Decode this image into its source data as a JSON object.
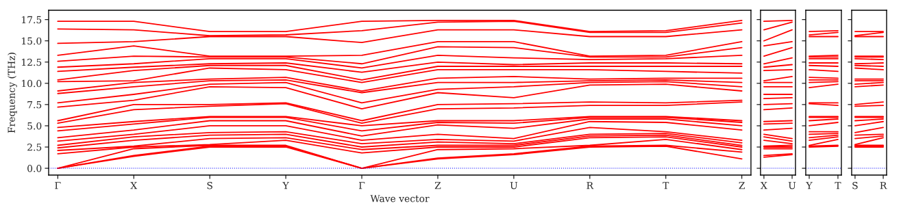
{
  "chart_data": [
    {
      "type": "line",
      "xlabel": "Wave vector",
      "ylabel": "Frequency (THz)",
      "categories": [
        "Γ",
        "X",
        "S",
        "Y",
        "Γ",
        "Z",
        "U",
        "R",
        "T",
        "Z"
      ],
      "ylim": [
        -0.8,
        18.6
      ],
      "yticks": [
        {
          "value": 0,
          "label": "0.0"
        },
        2.5,
        {
          "value": 5,
          "label": "5.0"
        },
        7.5,
        {
          "value": 10,
          "label": "10.0"
        },
        12.5,
        {
          "value": 15,
          "label": "15.0"
        },
        17.5
      ],
      "grid": false,
      "line_style": "solid",
      "marker": "none",
      "ref_lines": [
        {
          "axis": "y",
          "value": 0,
          "color": "#0000ff",
          "line_style": "dotted"
        }
      ],
      "series": [
        {
          "color": "#ff0000",
          "values": [
            0,
            1.4,
            2.5,
            2.5,
            0,
            1.1,
            1.6,
            2.5,
            2.6,
            1.1
          ]
        },
        {
          "color": "#ff0000",
          "values": [
            0,
            1.5,
            2.6,
            2.6,
            0,
            1.2,
            1.7,
            2.6,
            2.7,
            1.9
          ]
        },
        {
          "color": "#ff0000",
          "values": [
            0,
            2.3,
            2.7,
            2.7,
            0,
            2.2,
            2.3,
            2.7,
            3.4,
            2.2
          ]
        },
        {
          "color": "#ff0000",
          "values": [
            1.7,
            2.5,
            2.8,
            3.3,
            1.8,
            2.5,
            2.5,
            3.6,
            3.7,
            2.5
          ]
        },
        {
          "color": "#ff0000",
          "values": [
            2.1,
            2.6,
            3.5,
            3.6,
            2.2,
            2.7,
            2.7,
            3.8,
            3.9,
            2.7
          ]
        },
        {
          "color": "#ff0000",
          "values": [
            2.4,
            3.3,
            3.9,
            4.0,
            2.5,
            3.1,
            2.9,
            4.0,
            4.1,
            3.0
          ]
        },
        {
          "color": "#ff0000",
          "values": [
            2.7,
            3.7,
            4.2,
            4.3,
            2.9,
            3.4,
            3.2,
            4.8,
            4.3,
            3.3
          ]
        },
        {
          "color": "#ff0000",
          "values": [
            3.2,
            4.0,
            5.0,
            5.0,
            3.3,
            4.0,
            3.5,
            5.5,
            5.4,
            4.5
          ]
        },
        {
          "color": "#ff0000",
          "values": [
            3.6,
            4.5,
            5.6,
            5.6,
            3.8,
            5.1,
            4.7,
            5.8,
            5.8,
            5.0
          ]
        },
        {
          "color": "#ff0000",
          "values": [
            4.4,
            5.2,
            6.0,
            6.0,
            4.4,
            5.4,
            5.3,
            6.0,
            6.0,
            5.4
          ]
        },
        {
          "color": "#ff0000",
          "values": [
            4.8,
            5.5,
            6.1,
            6.1,
            5.0,
            5.6,
            5.6,
            6.1,
            6.1,
            5.6
          ]
        },
        {
          "color": "#ff0000",
          "values": [
            5.3,
            6.9,
            7.3,
            7.6,
            5.3,
            7.0,
            7.1,
            7.4,
            7.4,
            7.8
          ]
        },
        {
          "color": "#ff0000",
          "values": [
            5.6,
            7.5,
            7.5,
            7.7,
            5.6,
            7.5,
            7.6,
            7.8,
            7.7,
            8.0
          ]
        },
        {
          "color": "#ff0000",
          "values": [
            7.2,
            8.0,
            9.6,
            9.5,
            7.0,
            8.9,
            8.3,
            9.8,
            9.9,
            9.1
          ]
        },
        {
          "color": "#ff0000",
          "values": [
            7.7,
            8.7,
            9.9,
            10.1,
            7.7,
            9.3,
            9.6,
            10.1,
            10.2,
            9.6
          ]
        },
        {
          "color": "#ff0000",
          "values": [
            8.8,
            9.6,
            10.3,
            10.4,
            8.9,
            10.1,
            10.1,
            10.3,
            10.4,
            10.1
          ]
        },
        {
          "color": "#ff0000",
          "values": [
            9.1,
            10.1,
            10.5,
            10.7,
            9.1,
            10.6,
            10.8,
            10.5,
            10.6,
            10.6
          ]
        },
        {
          "color": "#ff0000",
          "values": [
            10.2,
            10.3,
            11.8,
            11.6,
            10.1,
            11.6,
            11.6,
            11.6,
            11.4,
            11.2
          ]
        },
        {
          "color": "#ff0000",
          "values": [
            10.4,
            11.5,
            12.1,
            12.1,
            10.4,
            12.0,
            12.0,
            12.0,
            12.0,
            12.0
          ]
        },
        {
          "color": "#ff0000",
          "values": [
            11.4,
            11.9,
            12.3,
            12.4,
            11.3,
            12.5,
            12.2,
            12.4,
            12.4,
            12.3
          ]
        },
        {
          "color": "#ff0000",
          "values": [
            11.9,
            12.3,
            12.9,
            12.9,
            11.8,
            13.3,
            13.0,
            12.8,
            12.9,
            13.3
          ]
        },
        {
          "color": "#ff0000",
          "values": [
            12.6,
            13.2,
            13.1,
            13.1,
            12.3,
            14.3,
            14.2,
            13.1,
            13.1,
            14.2
          ]
        },
        {
          "color": "#ff0000",
          "values": [
            13.3,
            14.4,
            13.2,
            13.2,
            13.3,
            14.9,
            14.9,
            13.2,
            13.3,
            14.9
          ]
        },
        {
          "color": "#ff0000",
          "values": [
            14.7,
            14.9,
            15.5,
            15.5,
            14.8,
            16.3,
            16.3,
            15.5,
            15.5,
            16.3
          ]
        },
        {
          "color": "#ff0000",
          "values": [
            16.4,
            16.3,
            15.6,
            15.7,
            16.2,
            17.2,
            17.3,
            16.0,
            16.0,
            17.1
          ]
        },
        {
          "color": "#ff0000",
          "values": [
            17.3,
            17.3,
            16.1,
            16.1,
            17.3,
            17.4,
            17.4,
            16.1,
            16.2,
            17.4
          ]
        }
      ]
    },
    {
      "type": "line",
      "categories": [
        "X",
        "U"
      ],
      "ylim": [
        -0.8,
        18.6
      ],
      "yticks": [
        {
          "value": 0,
          "label": null
        },
        {
          "value": 2.5,
          "label": null
        },
        {
          "value": 5,
          "label": null
        },
        {
          "value": 7.5,
          "label": null
        },
        {
          "value": 10,
          "label": null
        },
        {
          "value": 12.5,
          "label": null
        },
        {
          "value": 15,
          "label": null
        },
        {
          "value": 17.5,
          "label": null
        }
      ],
      "tick_labels": "x",
      "grid": false,
      "line_style": "solid",
      "marker": "none",
      "ref_lines": [
        {
          "axis": "y",
          "value": 0,
          "color": "#0000ff",
          "line_style": "dotted"
        }
      ],
      "series": [
        {
          "color": "#ff0000",
          "values": [
            1.3,
            1.6
          ]
        },
        {
          "color": "#ff0000",
          "values": [
            1.5,
            1.7
          ]
        },
        {
          "color": "#ff0000",
          "values": [
            2.3,
            2.3
          ]
        },
        {
          "color": "#ff0000",
          "values": [
            2.5,
            2.5
          ]
        },
        {
          "color": "#ff0000",
          "values": [
            2.6,
            2.7
          ]
        },
        {
          "color": "#ff0000",
          "values": [
            3.3,
            2.9
          ]
        },
        {
          "color": "#ff0000",
          "values": [
            3.7,
            3.2
          ]
        },
        {
          "color": "#ff0000",
          "values": [
            4.0,
            3.5
          ]
        },
        {
          "color": "#ff0000",
          "values": [
            4.5,
            4.7
          ]
        },
        {
          "color": "#ff0000",
          "values": [
            5.2,
            5.3
          ]
        },
        {
          "color": "#ff0000",
          "values": [
            5.5,
            5.6
          ]
        },
        {
          "color": "#ff0000",
          "values": [
            6.9,
            7.1
          ]
        },
        {
          "color": "#ff0000",
          "values": [
            7.5,
            7.6
          ]
        },
        {
          "color": "#ff0000",
          "values": [
            8.2,
            8.3
          ]
        },
        {
          "color": "#ff0000",
          "values": [
            8.7,
            8.7
          ]
        },
        {
          "color": "#ff0000",
          "values": [
            9.6,
            9.6
          ]
        },
        {
          "color": "#ff0000",
          "values": [
            10.1,
            10.1
          ]
        },
        {
          "color": "#ff0000",
          "values": [
            10.3,
            10.8
          ]
        },
        {
          "color": "#ff0000",
          "values": [
            11.5,
            11.6
          ]
        },
        {
          "color": "#ff0000",
          "values": [
            11.9,
            12.2
          ]
        },
        {
          "color": "#ff0000",
          "values": [
            12.3,
            13.0
          ]
        },
        {
          "color": "#ff0000",
          "values": [
            13.2,
            14.2
          ]
        },
        {
          "color": "#ff0000",
          "values": [
            14.4,
            14.9
          ]
        },
        {
          "color": "#ff0000",
          "values": [
            15.0,
            16.3
          ]
        },
        {
          "color": "#ff0000",
          "values": [
            16.3,
            17.2
          ]
        },
        {
          "color": "#ff0000",
          "values": [
            17.3,
            17.4
          ]
        }
      ]
    },
    {
      "type": "line",
      "categories": [
        "Y",
        "T"
      ],
      "ylim": [
        -0.8,
        18.6
      ],
      "yticks": [
        {
          "value": 0,
          "label": null
        },
        {
          "value": 2.5,
          "label": null
        },
        {
          "value": 5,
          "label": null
        },
        {
          "value": 7.5,
          "label": null
        },
        {
          "value": 10,
          "label": null
        },
        {
          "value": 12.5,
          "label": null
        },
        {
          "value": 15,
          "label": null
        },
        {
          "value": 17.5,
          "label": null
        }
      ],
      "tick_labels": "x",
      "grid": false,
      "line_style": "solid",
      "marker": "none",
      "ref_lines": [
        {
          "axis": "y",
          "value": 0,
          "color": "#0000ff",
          "line_style": "dotted"
        }
      ],
      "series": [
        {
          "color": "#ff0000",
          "values": [
            2.5,
            2.6
          ]
        },
        {
          "color": "#ff0000",
          "values": [
            2.6,
            2.7
          ]
        },
        {
          "color": "#ff0000",
          "values": [
            2.7,
            3.4
          ]
        },
        {
          "color": "#ff0000",
          "values": [
            3.3,
            3.7
          ]
        },
        {
          "color": "#ff0000",
          "values": [
            3.6,
            3.9
          ]
        },
        {
          "color": "#ff0000",
          "values": [
            4.0,
            4.1
          ]
        },
        {
          "color": "#ff0000",
          "values": [
            4.3,
            4.3
          ]
        },
        {
          "color": "#ff0000",
          "values": [
            5.0,
            5.4
          ]
        },
        {
          "color": "#ff0000",
          "values": [
            5.6,
            5.8
          ]
        },
        {
          "color": "#ff0000",
          "values": [
            6.0,
            6.0
          ]
        },
        {
          "color": "#ff0000",
          "values": [
            6.1,
            6.1
          ]
        },
        {
          "color": "#ff0000",
          "values": [
            7.6,
            7.4
          ]
        },
        {
          "color": "#ff0000",
          "values": [
            7.7,
            7.7
          ]
        },
        {
          "color": "#ff0000",
          "values": [
            9.5,
            9.9
          ]
        },
        {
          "color": "#ff0000",
          "values": [
            10.1,
            10.2
          ]
        },
        {
          "color": "#ff0000",
          "values": [
            10.4,
            10.4
          ]
        },
        {
          "color": "#ff0000",
          "values": [
            10.7,
            10.6
          ]
        },
        {
          "color": "#ff0000",
          "values": [
            11.6,
            11.4
          ]
        },
        {
          "color": "#ff0000",
          "values": [
            12.1,
            12.0
          ]
        },
        {
          "color": "#ff0000",
          "values": [
            12.4,
            12.4
          ]
        },
        {
          "color": "#ff0000",
          "values": [
            12.9,
            12.9
          ]
        },
        {
          "color": "#ff0000",
          "values": [
            13.1,
            13.1
          ]
        },
        {
          "color": "#ff0000",
          "values": [
            13.2,
            13.3
          ]
        },
        {
          "color": "#ff0000",
          "values": [
            15.5,
            15.5
          ]
        },
        {
          "color": "#ff0000",
          "values": [
            15.7,
            16.0
          ]
        },
        {
          "color": "#ff0000",
          "values": [
            16.1,
            16.2
          ]
        }
      ]
    },
    {
      "type": "line",
      "categories": [
        "S",
        "R"
      ],
      "ylim": [
        -0.8,
        18.6
      ],
      "yticks": [
        {
          "value": 0,
          "label": null
        },
        {
          "value": 2.5,
          "label": null
        },
        {
          "value": 5,
          "label": null
        },
        {
          "value": 7.5,
          "label": null
        },
        {
          "value": 10,
          "label": null
        },
        {
          "value": 12.5,
          "label": null
        },
        {
          "value": 15,
          "label": null
        },
        {
          "value": 17.5,
          "label": null
        }
      ],
      "tick_labels": "x",
      "grid": false,
      "line_style": "solid",
      "marker": "none",
      "ref_lines": [
        {
          "axis": "y",
          "value": 0,
          "color": "#0000ff",
          "line_style": "dotted"
        }
      ],
      "series": [
        {
          "color": "#ff0000",
          "values": [
            2.5,
            2.5
          ]
        },
        {
          "color": "#ff0000",
          "values": [
            2.6,
            2.6
          ]
        },
        {
          "color": "#ff0000",
          "values": [
            2.7,
            2.7
          ]
        },
        {
          "color": "#ff0000",
          "values": [
            2.8,
            3.6
          ]
        },
        {
          "color": "#ff0000",
          "values": [
            3.5,
            3.8
          ]
        },
        {
          "color": "#ff0000",
          "values": [
            3.9,
            4.0
          ]
        },
        {
          "color": "#ff0000",
          "values": [
            4.2,
            4.8
          ]
        },
        {
          "color": "#ff0000",
          "values": [
            5.0,
            5.5
          ]
        },
        {
          "color": "#ff0000",
          "values": [
            5.6,
            5.8
          ]
        },
        {
          "color": "#ff0000",
          "values": [
            6.0,
            6.0
          ]
        },
        {
          "color": "#ff0000",
          "values": [
            6.1,
            6.1
          ]
        },
        {
          "color": "#ff0000",
          "values": [
            7.3,
            7.4
          ]
        },
        {
          "color": "#ff0000",
          "values": [
            7.5,
            7.8
          ]
        },
        {
          "color": "#ff0000",
          "values": [
            9.6,
            9.8
          ]
        },
        {
          "color": "#ff0000",
          "values": [
            9.9,
            10.1
          ]
        },
        {
          "color": "#ff0000",
          "values": [
            10.3,
            10.3
          ]
        },
        {
          "color": "#ff0000",
          "values": [
            10.5,
            10.5
          ]
        },
        {
          "color": "#ff0000",
          "values": [
            11.8,
            11.6
          ]
        },
        {
          "color": "#ff0000",
          "values": [
            12.1,
            12.0
          ]
        },
        {
          "color": "#ff0000",
          "values": [
            12.3,
            12.4
          ]
        },
        {
          "color": "#ff0000",
          "values": [
            12.9,
            12.8
          ]
        },
        {
          "color": "#ff0000",
          "values": [
            13.1,
            13.1
          ]
        },
        {
          "color": "#ff0000",
          "values": [
            13.2,
            13.2
          ]
        },
        {
          "color": "#ff0000",
          "values": [
            15.5,
            15.5
          ]
        },
        {
          "color": "#ff0000",
          "values": [
            15.6,
            16.0
          ]
        },
        {
          "color": "#ff0000",
          "values": [
            16.1,
            16.1
          ]
        }
      ]
    }
  ]
}
